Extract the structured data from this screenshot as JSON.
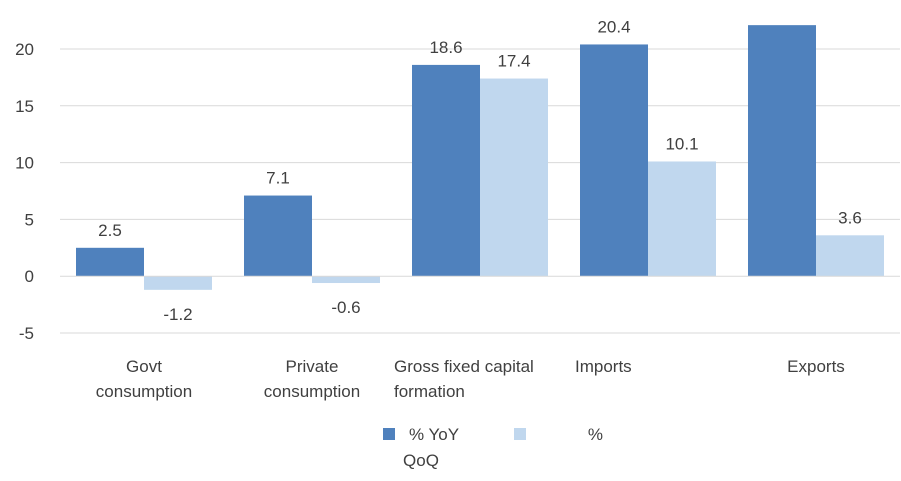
{
  "chart_data": {
    "type": "bar",
    "categories": [
      [
        "Govt",
        "consumption"
      ],
      [
        "Private",
        "consumption"
      ],
      [
        "Gross fixed capital",
        "formation"
      ],
      [
        "Imports"
      ],
      [
        "Exports"
      ]
    ],
    "series": [
      {
        "name": "% YoY",
        "values": [
          2.5,
          7.1,
          18.6,
          20.4,
          22.1
        ],
        "labels": [
          "2.5",
          "7.1",
          "18.6",
          "20.4",
          ""
        ],
        "color": "#4f81bd"
      },
      {
        "name": "% QoQ",
        "values": [
          -1.2,
          -0.6,
          17.4,
          10.1,
          3.6
        ],
        "labels": [
          "-1.2",
          "-0.6",
          "17.4",
          "10.1",
          "3.6"
        ],
        "color": "#c0d7ee"
      }
    ],
    "yticks": [
      "20",
      "15",
      "10",
      "5",
      "0",
      "-5"
    ],
    "ylim": [
      -5,
      20
    ],
    "grid": true,
    "legend": {
      "position": "bottom",
      "items": [
        "% YoY",
        "% QoQ"
      ]
    }
  }
}
